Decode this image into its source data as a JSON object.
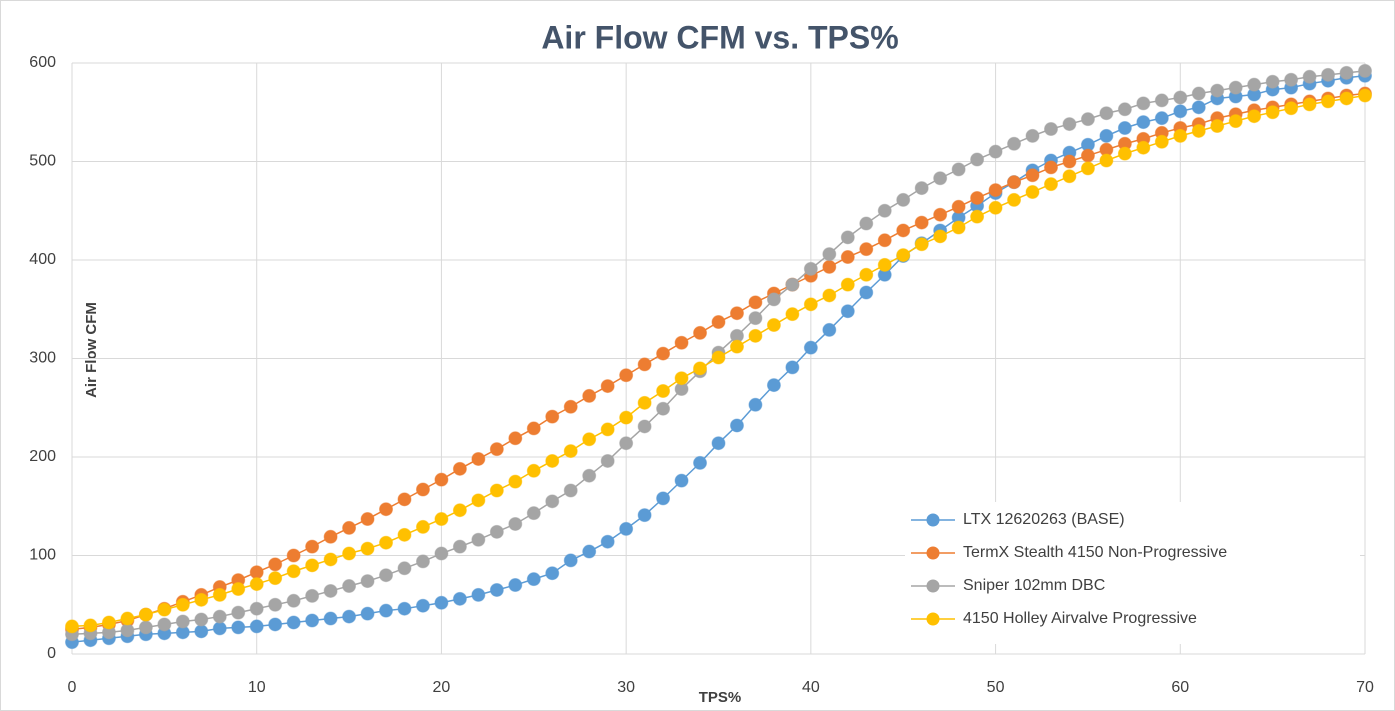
{
  "chart_data": {
    "type": "line",
    "title": "Air Flow CFM vs. TPS%",
    "xlabel": "TPS%",
    "ylabel": "Air Flow CFM",
    "x": [
      0,
      1,
      2,
      3,
      4,
      5,
      6,
      7,
      8,
      9,
      10,
      11,
      12,
      13,
      14,
      15,
      16,
      17,
      18,
      19,
      20,
      21,
      22,
      23,
      24,
      25,
      26,
      27,
      28,
      29,
      30,
      31,
      32,
      33,
      34,
      35,
      36,
      37,
      38,
      39,
      40,
      41,
      42,
      43,
      44,
      45,
      46,
      47,
      48,
      49,
      50,
      51,
      52,
      53,
      54,
      55,
      56,
      57,
      58,
      59,
      60,
      61,
      62,
      63,
      64,
      65,
      66,
      67,
      68,
      69,
      70
    ],
    "series": [
      {
        "name": "LTX 12620263 (BASE)",
        "color": "#5b9bd5",
        "values": [
          12,
          14,
          16,
          18,
          20,
          21,
          22,
          23,
          26,
          27,
          28,
          30,
          32,
          34,
          36,
          38,
          41,
          44,
          46,
          49,
          52,
          56,
          60,
          65,
          70,
          76,
          82,
          95,
          104,
          114,
          127,
          141,
          158,
          176,
          194,
          214,
          232,
          253,
          273,
          291,
          311,
          329,
          348,
          367,
          385,
          404,
          417,
          430,
          443,
          455,
          468,
          479,
          491,
          501,
          509,
          517,
          526,
          534,
          540,
          544,
          551,
          555,
          564,
          566,
          568,
          573,
          575,
          579,
          582,
          585,
          587
        ]
      },
      {
        "name": "TermX Stealth 4150 Non-Progressive",
        "color": "#ed7d31",
        "values": [
          25,
          27,
          30,
          34,
          40,
          46,
          53,
          60,
          68,
          75,
          83,
          91,
          100,
          109,
          119,
          128,
          137,
          147,
          157,
          167,
          177,
          188,
          198,
          208,
          219,
          229,
          241,
          251,
          262,
          272,
          283,
          294,
          305,
          316,
          326,
          337,
          346,
          357,
          366,
          375,
          384,
          393,
          403,
          411,
          420,
          430,
          438,
          446,
          454,
          463,
          471,
          479,
          486,
          494,
          500,
          506,
          512,
          518,
          523,
          529,
          534,
          538,
          544,
          548,
          552,
          555,
          558,
          561,
          564,
          567,
          569
        ]
      },
      {
        "name": "Sniper 102mm DBC",
        "color": "#a5a5a5",
        "values": [
          20,
          21,
          22,
          24,
          27,
          30,
          33,
          35,
          38,
          42,
          46,
          50,
          54,
          59,
          64,
          69,
          74,
          80,
          87,
          94,
          102,
          109,
          116,
          124,
          132,
          143,
          155,
          166,
          181,
          196,
          214,
          231,
          249,
          269,
          287,
          306,
          323,
          341,
          360,
          375,
          391,
          406,
          423,
          437,
          450,
          461,
          473,
          483,
          492,
          502,
          510,
          518,
          526,
          533,
          538,
          543,
          549,
          553,
          559,
          562,
          565,
          569,
          572,
          575,
          578,
          581,
          583,
          586,
          588,
          590,
          592
        ]
      },
      {
        "name": "4150 Holley Airvalve Progressive",
        "color": "#ffc000",
        "values": [
          28,
          29,
          32,
          36,
          40,
          45,
          50,
          55,
          60,
          66,
          71,
          77,
          84,
          90,
          96,
          102,
          107,
          113,
          121,
          129,
          137,
          146,
          156,
          166,
          175,
          186,
          196,
          206,
          218,
          228,
          240,
          255,
          267,
          280,
          290,
          301,
          312,
          323,
          334,
          345,
          355,
          364,
          375,
          385,
          395,
          405,
          416,
          424,
          433,
          444,
          453,
          461,
          469,
          477,
          485,
          493,
          501,
          508,
          514,
          520,
          526,
          531,
          536,
          541,
          546,
          550,
          554,
          558,
          561,
          564,
          567
        ]
      }
    ],
    "xlim": [
      0,
      70
    ],
    "xticks": [
      0,
      10,
      20,
      30,
      40,
      50,
      60,
      70
    ],
    "ylim": [
      0,
      600
    ],
    "yticks": [
      0,
      100,
      200,
      300,
      400,
      500,
      600
    ],
    "grid": true,
    "legend": "lower right"
  }
}
